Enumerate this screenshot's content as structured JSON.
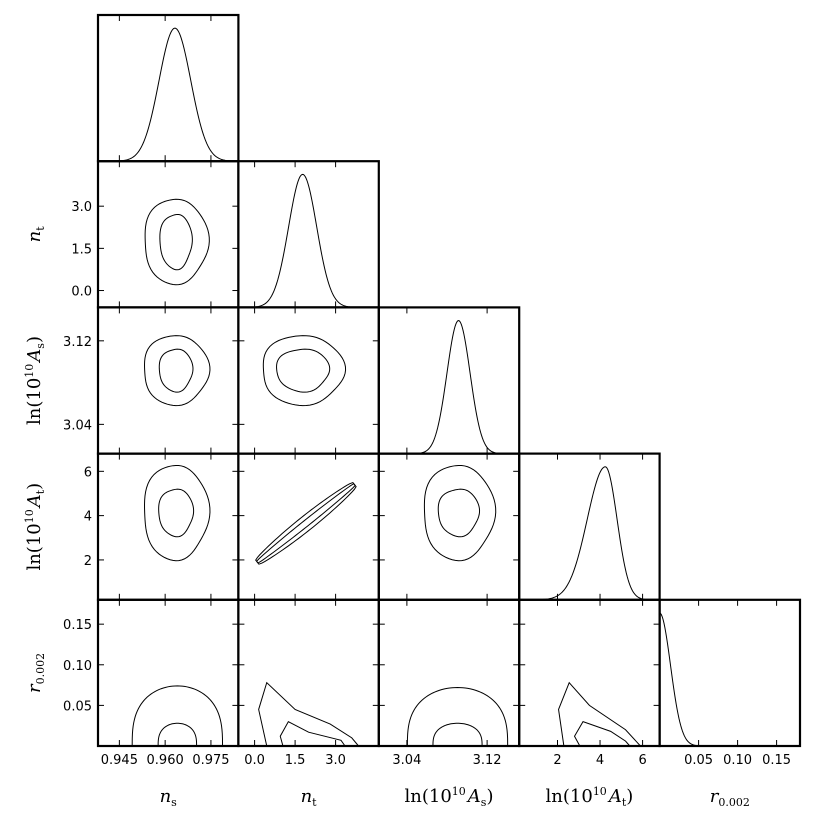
{
  "chart_data": {
    "type": "triangle_corner_plot",
    "parameters": [
      {
        "id": "ns",
        "label": "n",
        "sub": "s",
        "ticks": [
          0.945,
          0.96,
          0.975
        ],
        "tick_labels": [
          "0.945",
          "0.960",
          "0.975"
        ],
        "range": [
          0.938,
          0.984
        ]
      },
      {
        "id": "nt",
        "label": "n",
        "sub": "t",
        "ticks": [
          0.0,
          1.5,
          3.0
        ],
        "tick_labels": [
          "0.0",
          "1.5",
          "3.0"
        ],
        "range": [
          -0.6,
          4.6
        ]
      },
      {
        "id": "lnAs",
        "label": "ln(10",
        "sup": "10",
        "tail": "A",
        "sub": "s",
        "ticks": [
          3.04,
          3.12
        ],
        "tick_labels": [
          "3.04",
          "3.12"
        ],
        "range": [
          3.012,
          3.152
        ]
      },
      {
        "id": "lnAt",
        "label": "ln(10",
        "sup": "10",
        "tail": "A",
        "sub": "t",
        "ticks": [
          2,
          4,
          6
        ],
        "tick_labels": [
          "2",
          "4",
          "6"
        ],
        "range": [
          0.2,
          6.8
        ]
      },
      {
        "id": "r",
        "label": "r",
        "sub": "0.002",
        "ticks": [
          0.05,
          0.1,
          0.15
        ],
        "tick_labels": [
          "0.05",
          "0.10",
          "0.15"
        ],
        "range": [
          0.0,
          0.18
        ]
      }
    ],
    "marginals": [
      {
        "param": "ns",
        "shape": "gaussian",
        "mean": 0.9632,
        "sd": 0.0052
      },
      {
        "param": "nt",
        "shape": "gaussian",
        "mean": 1.78,
        "sd": 0.52
      },
      {
        "param": "lnAs",
        "shape": "gaussian",
        "mean": 3.0915,
        "sd": 0.0115
      },
      {
        "param": "lnAt",
        "shape": "skew",
        "mode": 4.25,
        "sd_left": 0.85,
        "sd_right": 0.55
      },
      {
        "param": "r",
        "shape": "half-gaussian",
        "mode": 0.0,
        "sd": 0.014
      }
    ],
    "contours": [
      {
        "row": "nt",
        "col": "ns",
        "kind": "ellipse",
        "cx": 0.9635,
        "cy": 1.75,
        "levels": [
          {
            "rx": 0.0053,
            "ry": 0.98
          },
          {
            "rx": 0.0105,
            "ry": 1.52
          }
        ]
      },
      {
        "row": "lnAs",
        "col": "ns",
        "kind": "ellipse",
        "cx": 0.9635,
        "cy": 3.092,
        "levels": [
          {
            "rx": 0.0055,
            "ry": 0.0205
          },
          {
            "rx": 0.0107,
            "ry": 0.0335
          }
        ]
      },
      {
        "row": "lnAs",
        "col": "nt",
        "kind": "ellipse",
        "cx": 1.78,
        "cy": 3.092,
        "levels": [
          {
            "rx": 0.98,
            "ry": 0.0205
          },
          {
            "rx": 1.52,
            "ry": 0.0335
          }
        ]
      },
      {
        "row": "lnAt",
        "col": "ns",
        "kind": "ellipse",
        "cx": 0.9635,
        "cy": 4.15,
        "levels": [
          {
            "rx": 0.0057,
            "ry": 1.07
          },
          {
            "rx": 0.0107,
            "ry": 2.15
          }
        ]
      },
      {
        "row": "lnAt",
        "col": "nt",
        "kind": "band",
        "x0": 0.1,
        "y0": 1.9,
        "x1": 3.7,
        "y1": 5.4,
        "levels": [
          {
            "half_width": 0.14
          },
          {
            "half_width": 0.33
          }
        ]
      },
      {
        "row": "lnAt",
        "col": "lnAs",
        "kind": "ellipse",
        "cx": 3.0915,
        "cy": 4.15,
        "levels": [
          {
            "rx": 0.0205,
            "ry": 1.07
          },
          {
            "rx": 0.0355,
            "ry": 2.15
          }
        ]
      },
      {
        "row": "r",
        "col": "ns",
        "kind": "dome",
        "cx": 0.964,
        "levels": [
          {
            "half_width": 0.0063,
            "height": 0.028
          },
          {
            "half_width": 0.0148,
            "height": 0.074
          }
        ]
      },
      {
        "row": "r",
        "col": "nt",
        "kind": "tail",
        "levels": [
          {
            "pts": [
              [
                1.05,
                0.0
              ],
              [
                0.95,
                0.012
              ],
              [
                1.25,
                0.03
              ],
              [
                2.0,
                0.017
              ],
              [
                3.2,
                0.007
              ],
              [
                3.35,
                0.0
              ]
            ]
          },
          {
            "pts": [
              [
                0.45,
                0.0
              ],
              [
                0.15,
                0.045
              ],
              [
                0.45,
                0.078
              ],
              [
                1.5,
                0.045
              ],
              [
                2.8,
                0.027
              ],
              [
                3.6,
                0.01
              ],
              [
                3.85,
                0.0
              ]
            ]
          }
        ]
      },
      {
        "row": "r",
        "col": "lnAs",
        "kind": "dome",
        "cx": 3.0905,
        "levels": [
          {
            "half_width": 0.0245,
            "height": 0.028
          },
          {
            "half_width": 0.05,
            "height": 0.072
          }
        ]
      },
      {
        "row": "r",
        "col": "lnAt",
        "kind": "tail",
        "levels": [
          {
            "pts": [
              [
                3.05,
                0.0
              ],
              [
                2.8,
                0.012
              ],
              [
                3.2,
                0.03
              ],
              [
                4.5,
                0.018
              ],
              [
                5.2,
                0.006
              ],
              [
                5.4,
                0.0
              ]
            ]
          },
          {
            "pts": [
              [
                2.3,
                0.0
              ],
              [
                2.05,
                0.045
              ],
              [
                2.55,
                0.078
              ],
              [
                3.5,
                0.05
              ],
              [
                5.2,
                0.02
              ],
              [
                5.9,
                0.0
              ]
            ]
          }
        ]
      }
    ]
  }
}
